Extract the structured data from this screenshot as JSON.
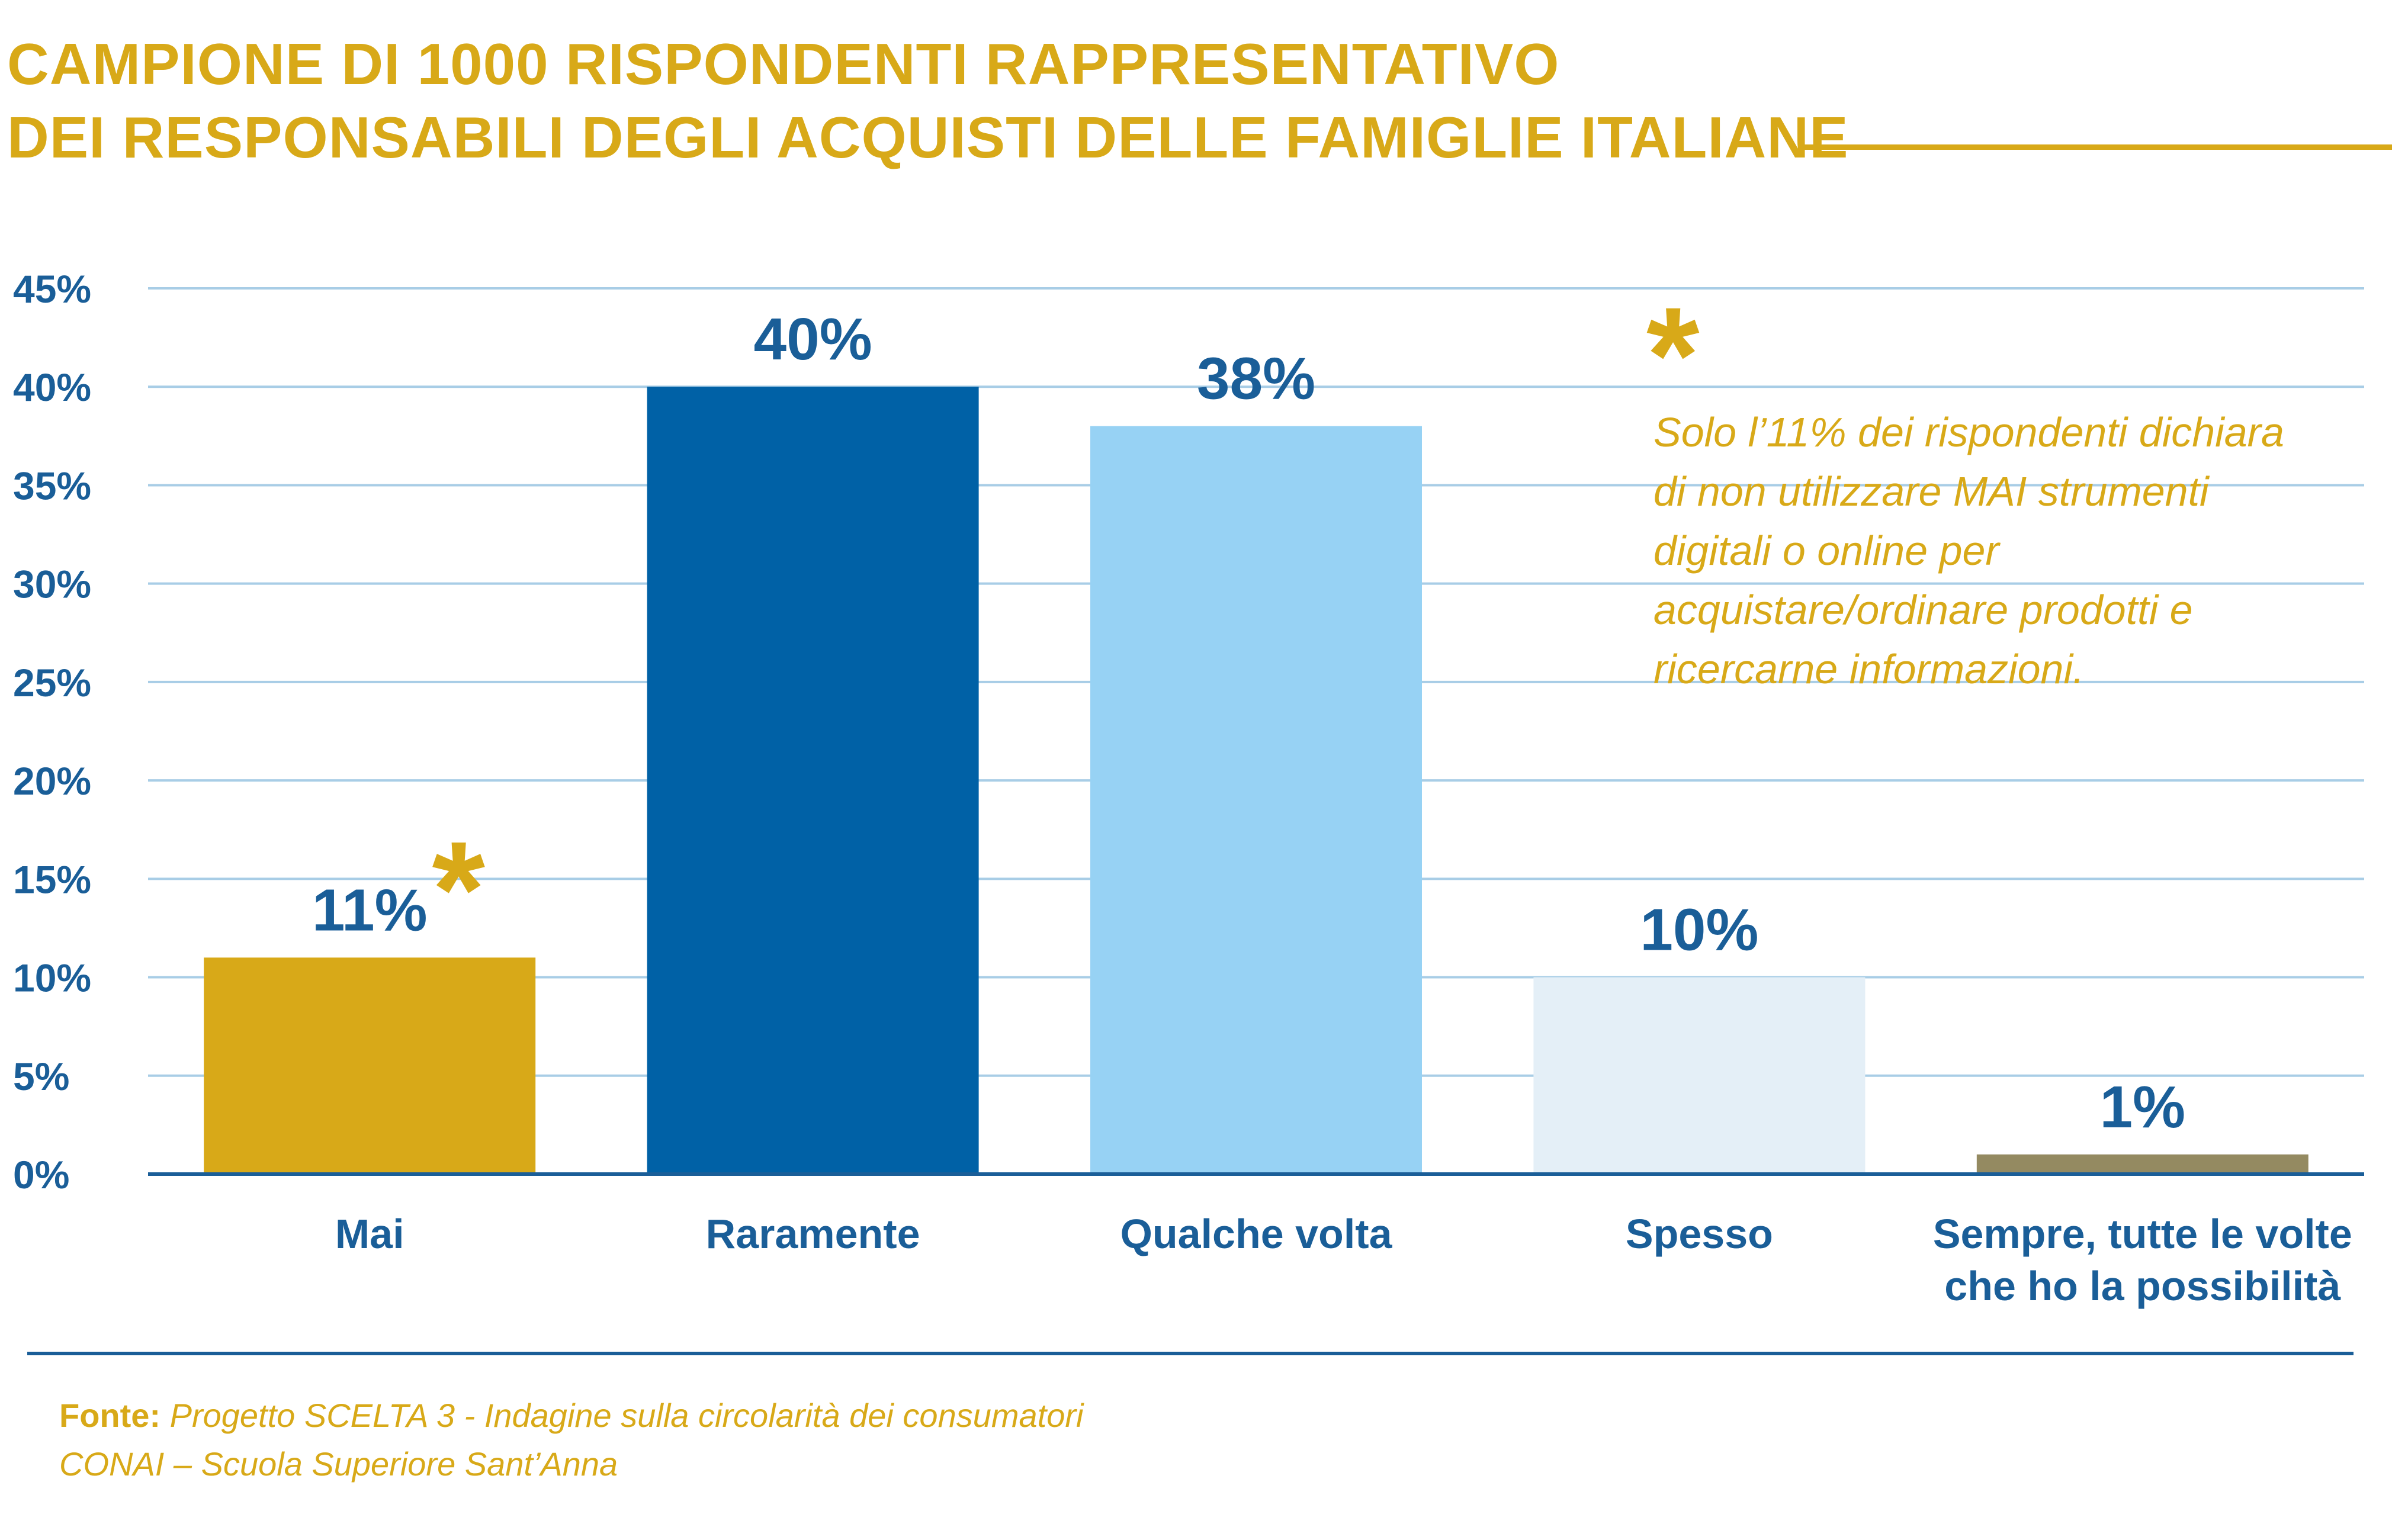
{
  "title": {
    "line1": "CAMPIONE DI 1000 RISPONDENTI RAPPRESENTATIVO",
    "line2": "DEI RESPONSABILI DEGLI ACQUISTI DELLE FAMIGLIE ITALIANE"
  },
  "colors": {
    "accent": "#d8a918",
    "axis_text": "#1a5e98",
    "grid": "#a8cde6",
    "bar_mai": "#d8a918",
    "bar_raramente": "#0061a6",
    "bar_qualche_volta": "#97d2f4",
    "bar_spesso": "#e4eff7",
    "bar_sempre": "#948a61"
  },
  "chart_data": {
    "type": "bar",
    "title": "",
    "xlabel": "",
    "ylabel": "",
    "ylim": [
      0,
      45
    ],
    "yticks": [
      0,
      5,
      10,
      15,
      20,
      25,
      30,
      35,
      40,
      45
    ],
    "ytick_labels": [
      "0%",
      "5%",
      "10%",
      "15%",
      "20%",
      "25%",
      "30%",
      "35%",
      "40%",
      "45%"
    ],
    "grid": true,
    "categories": [
      [
        "Mai"
      ],
      [
        "Raramente"
      ],
      [
        "Qualche volta"
      ],
      [
        "Spesso"
      ],
      [
        "Sempre, tutte le volte",
        "che ho la possibilità"
      ]
    ],
    "values": [
      11,
      40,
      38,
      10,
      1
    ],
    "data_labels": [
      "11%",
      "40%",
      "38%",
      "10%",
      "1%"
    ],
    "bar_colors": [
      "#d8a918",
      "#0061a6",
      "#97d2f4",
      "#e4eff7",
      "#948a61"
    ],
    "starred_index": 0,
    "star_symbol": "*"
  },
  "note": {
    "symbol": "*",
    "text": "Solo l’11% dei rispondenti dichiara di non utilizzare MAI strumenti digitali o online per acquistare/ordinare prodotti e ricercarne informazioni."
  },
  "source": {
    "label": "Fonte:",
    "line1": "Progetto SCELTA 3 - Indagine sulla circolarità dei consumatori",
    "line2": "CONAI – Scuola Superiore Sant’Anna"
  }
}
